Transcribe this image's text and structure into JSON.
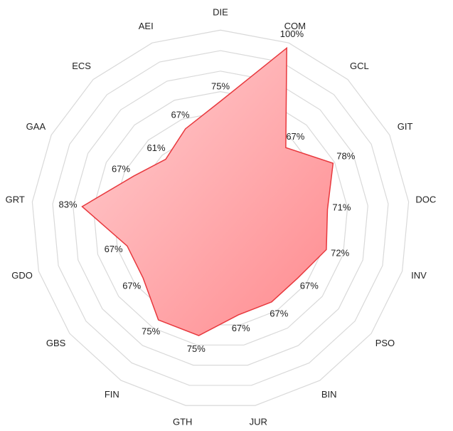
{
  "chart_data": {
    "type": "radar",
    "categories": [
      "DIE",
      "COM",
      "GCL",
      "GIT",
      "DOC",
      "INV",
      "PSO",
      "BIN",
      "JUR",
      "GTH",
      "FIN",
      "GBS",
      "GDO",
      "GRT",
      "GAA",
      "ECS",
      "AEI"
    ],
    "series": [
      {
        "name": null,
        "color": "#e8383d",
        "values": [
          75,
          100,
          67,
          78,
          71,
          72,
          67,
          67,
          67,
          75,
          75,
          67,
          67,
          83,
          67,
          61,
          67
        ],
        "value_labels": [
          "75%",
          "100%",
          "67%",
          "78%",
          "71%",
          "72%",
          "67%",
          "67%",
          "67%",
          "75%",
          "75%",
          "67%",
          "67%",
          "83%",
          "67%",
          "61%",
          "67%"
        ]
      }
    ],
    "rlim": [
      30,
      100
    ]
  }
}
